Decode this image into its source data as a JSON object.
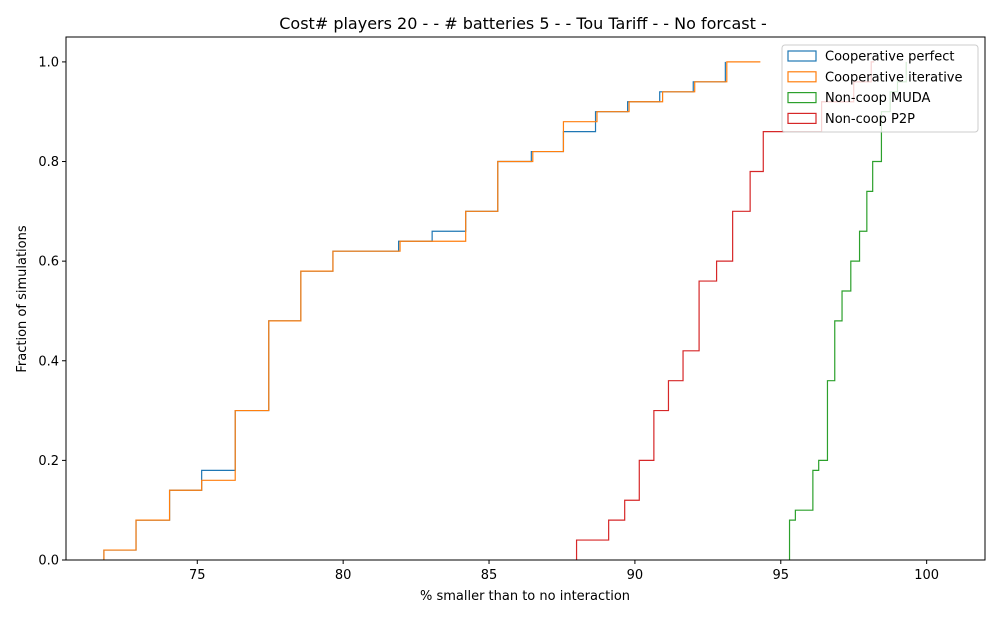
{
  "chart_data": {
    "type": "line",
    "title": "Cost# players 20 - - # batteries 5 - - Tou Tariff -  - No forcast -",
    "xlabel": "% smaller than to no interaction",
    "ylabel": "Fraction of simulations",
    "xlim": [
      70.5,
      102
    ],
    "ylim": [
      0,
      1.05
    ],
    "xticks": [
      75,
      80,
      85,
      90,
      95,
      100
    ],
    "xtick_labels": [
      "75",
      "80",
      "85",
      "90",
      "95",
      "100"
    ],
    "yticks": [
      0.0,
      0.2,
      0.4,
      0.6,
      0.8,
      1.0
    ],
    "ytick_labels": [
      "0.0",
      "0.2",
      "0.4",
      "0.6",
      "0.8",
      "1.0"
    ],
    "grid": false,
    "legend_position": "top-right",
    "series": [
      {
        "name": "Cooperative perfect",
        "color": "#1f77b4",
        "x": [
          71.8,
          72.9,
          74.05,
          75.15,
          76.3,
          77.45,
          78.55,
          79.65,
          81.9,
          83.05,
          84.2,
          85.3,
          86.45,
          87.55,
          88.65,
          89.75,
          90.85,
          92.0,
          93.1
        ],
        "y": [
          0.02,
          0.08,
          0.14,
          0.18,
          0.3,
          0.48,
          0.58,
          0.62,
          0.64,
          0.66,
          0.7,
          0.8,
          0.82,
          0.86,
          0.9,
          0.92,
          0.94,
          0.96,
          1.0
        ],
        "x_end": 93.1
      },
      {
        "name": "Cooperative iterative",
        "color": "#ff7f0e",
        "x": [
          71.8,
          72.9,
          74.05,
          75.15,
          76.3,
          77.45,
          78.55,
          79.65,
          81.95,
          84.2,
          85.3,
          86.5,
          87.55,
          88.7,
          89.8,
          90.95,
          92.05,
          93.15
        ],
        "y": [
          0.02,
          0.08,
          0.14,
          0.16,
          0.3,
          0.48,
          0.58,
          0.62,
          0.64,
          0.7,
          0.8,
          0.82,
          0.88,
          0.9,
          0.92,
          0.94,
          0.96,
          1.0
        ],
        "x_end": 94.3
      },
      {
        "name": "Non-coop MUDA",
        "color": "#2ca02c",
        "x": [
          95.3,
          95.5,
          96.1,
          96.3,
          96.6,
          96.85,
          97.1,
          97.4,
          97.7,
          97.95,
          98.15,
          98.45,
          98.75,
          99.0,
          99.3
        ],
        "y": [
          0.08,
          0.1,
          0.18,
          0.2,
          0.36,
          0.48,
          0.54,
          0.6,
          0.66,
          0.74,
          0.8,
          0.9,
          0.94,
          0.96,
          1.0
        ],
        "x_end": 99.3
      },
      {
        "name": "Non-coop P2P",
        "color": "#d62728",
        "x": [
          88.0,
          89.1,
          89.65,
          90.15,
          90.65,
          91.15,
          91.65,
          92.2,
          92.8,
          93.35,
          93.95,
          94.4,
          95.4,
          96.4,
          97.5,
          98.1
        ],
        "y": [
          0.04,
          0.08,
          0.12,
          0.2,
          0.3,
          0.36,
          0.42,
          0.56,
          0.6,
          0.7,
          0.78,
          0.86,
          0.86,
          0.92,
          0.96,
          1.0
        ],
        "x_end": 98.2
      }
    ]
  }
}
